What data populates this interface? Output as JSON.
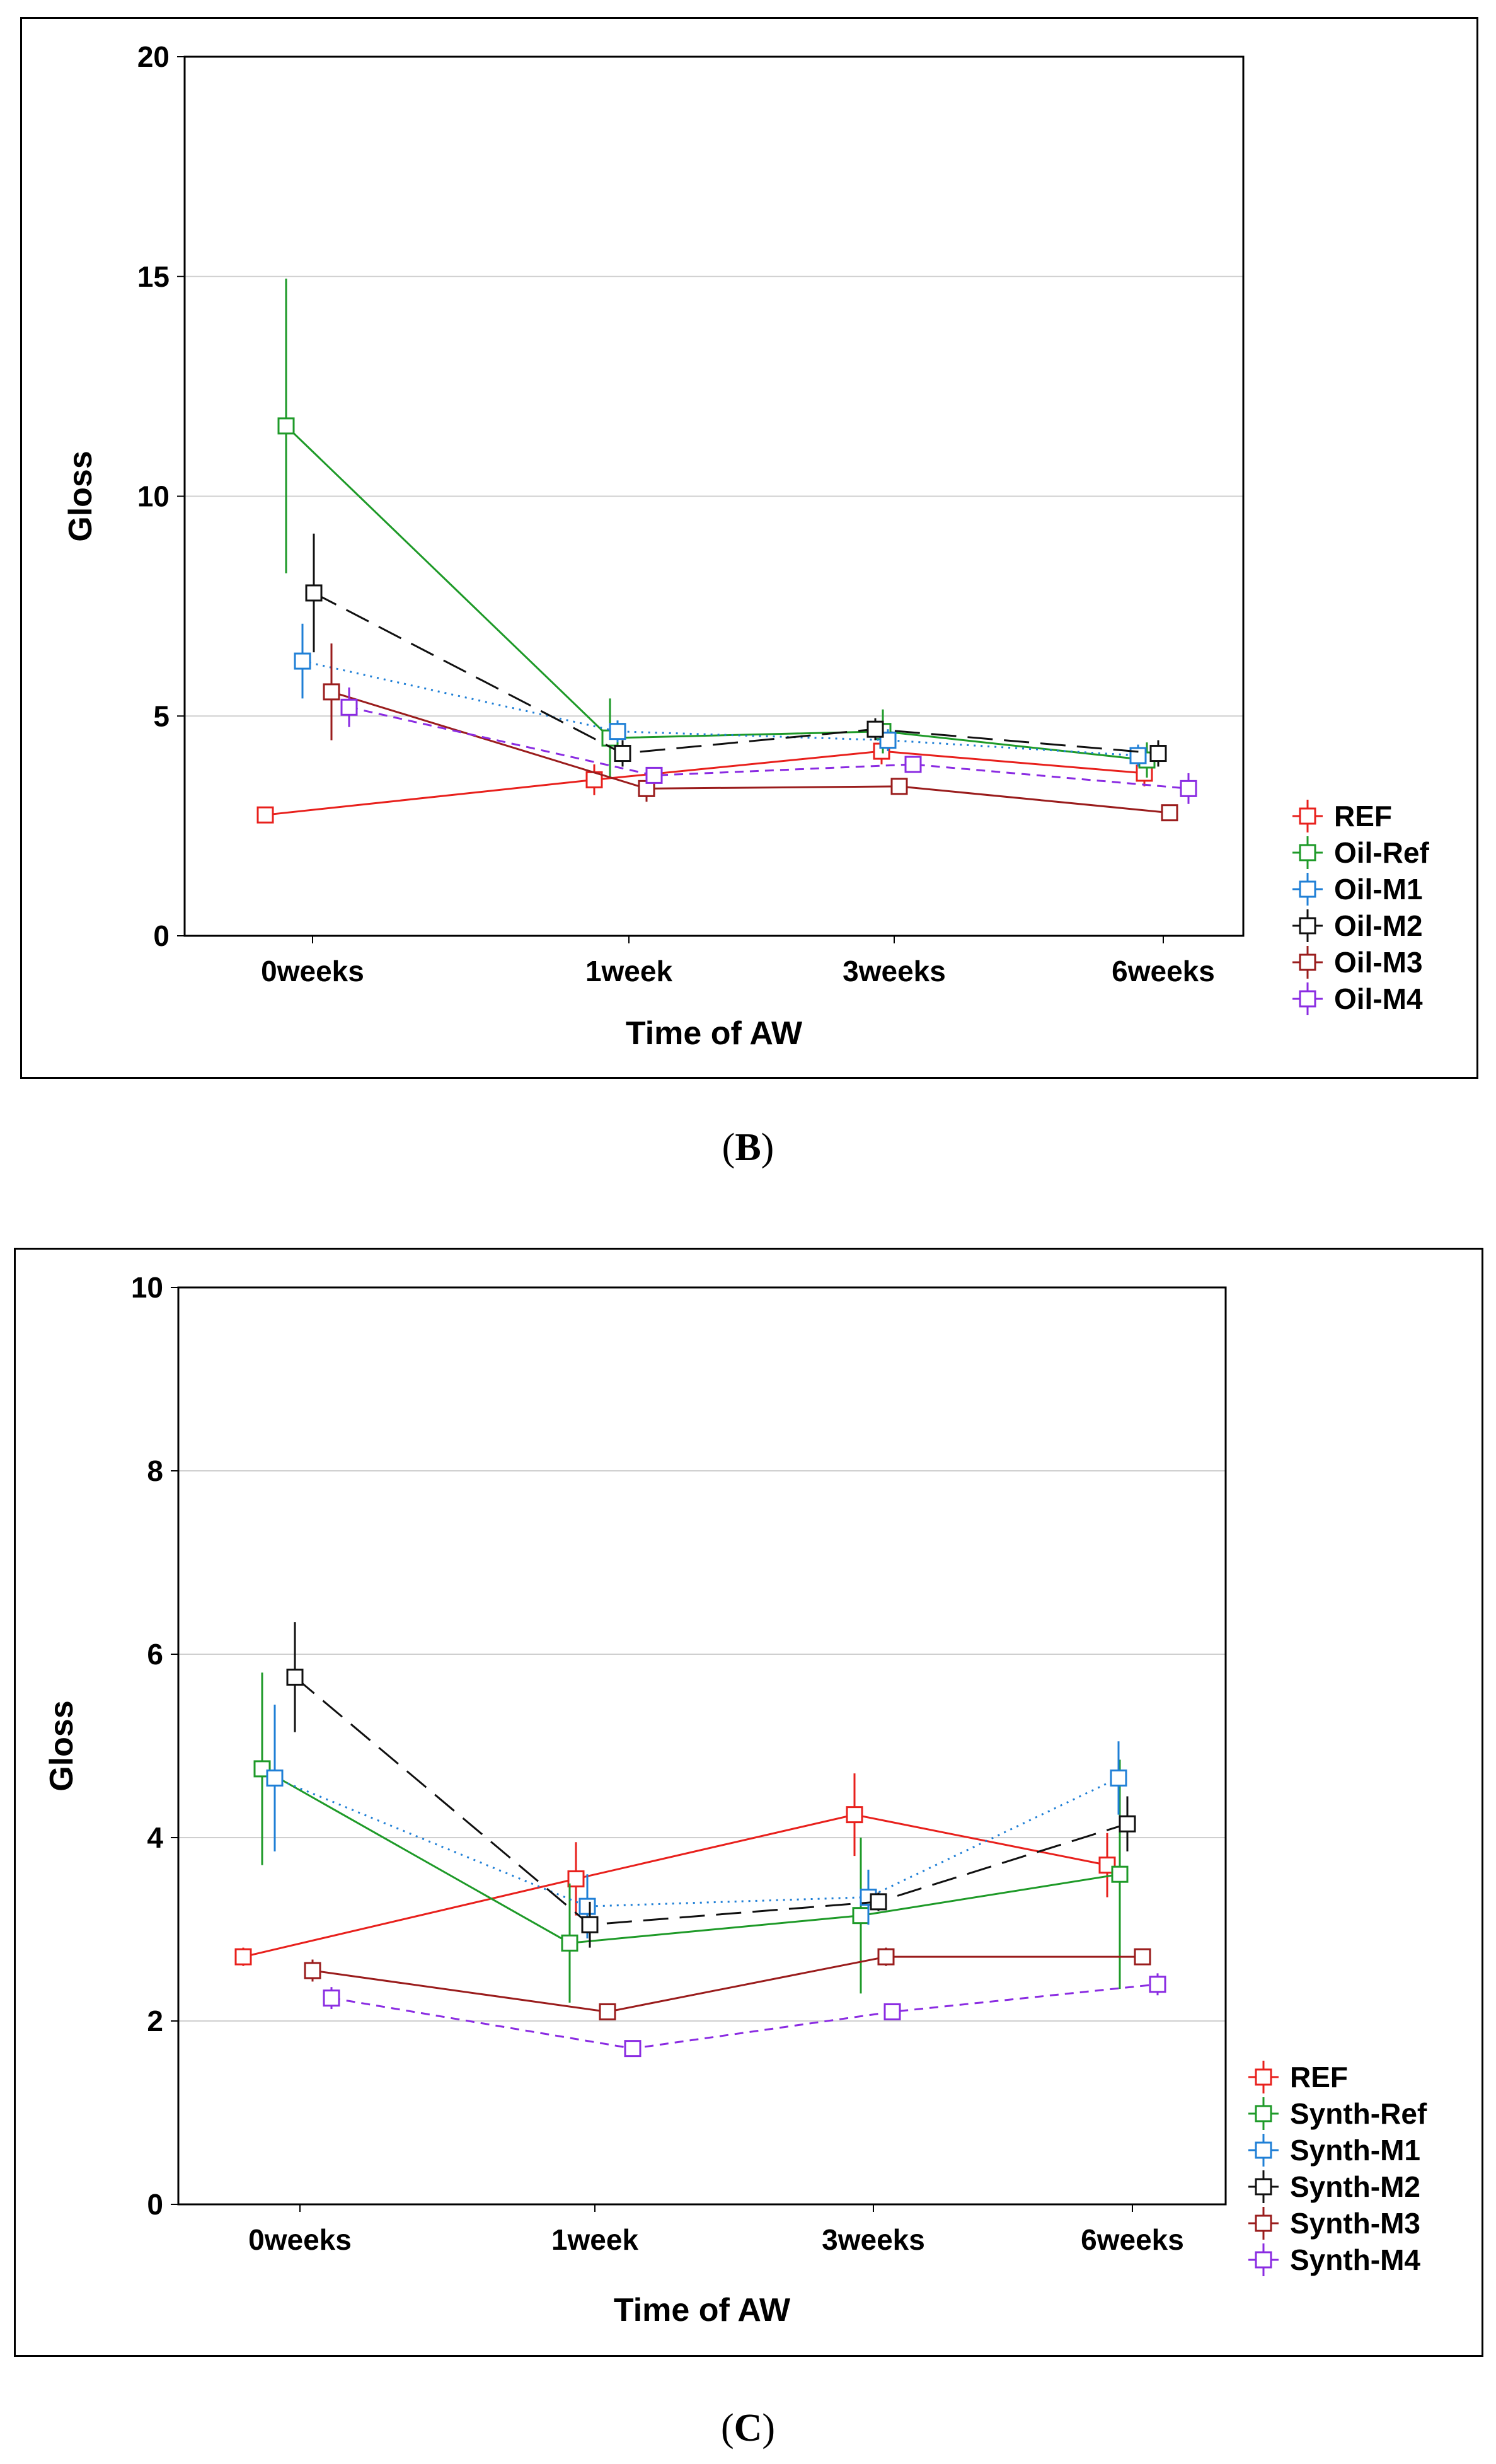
{
  "panels": [
    {
      "caption": {
        "open": "(",
        "letter": "B",
        "close": ")"
      },
      "chart_data": {
        "type": "line",
        "title": "",
        "xlabel": "Time of AW",
        "ylabel": "Gloss",
        "ylim": [
          0,
          20
        ],
        "yticks": [
          0,
          5,
          10,
          15,
          20
        ],
        "grid": true,
        "legend": "right-bottom",
        "categories": [
          "0weeks",
          "1week",
          "3weeks",
          "6weeks"
        ],
        "series": [
          {
            "name": "REF",
            "color": "#e8201c",
            "dash": "solid",
            "values": [
              2.75,
              3.55,
              4.2,
              3.7
            ],
            "err": [
              0.1,
              0.35,
              0.3,
              0.3
            ]
          },
          {
            "name": "Oil-Ref",
            "color": "#1e9a28",
            "dash": "solid",
            "values": [
              11.6,
              4.5,
              4.65,
              4.0
            ],
            "err": [
              3.35,
              0.9,
              0.5,
              0.4
            ]
          },
          {
            "name": "Oil-M1",
            "color": "#1f7fd6",
            "dash": "dot",
            "values": [
              6.25,
              4.65,
              4.45,
              4.1
            ],
            "err": [
              0.85,
              0.25,
              0.25,
              0.25
            ]
          },
          {
            "name": "Oil-M2",
            "color": "#101010",
            "dash": "longdash",
            "values": [
              7.8,
              4.15,
              4.7,
              4.15
            ],
            "err": [
              1.35,
              0.3,
              0.25,
              0.3
            ]
          },
          {
            "name": "Oil-M3",
            "color": "#9a1c1c",
            "dash": "solid",
            "values": [
              5.55,
              3.35,
              3.4,
              2.8
            ],
            "err": [
              1.1,
              0.3,
              0.1,
              0.1
            ]
          },
          {
            "name": "Oil-M4",
            "color": "#8a2be2",
            "dash": "shortdash",
            "values": [
              5.2,
              3.65,
              3.9,
              3.35
            ],
            "err": [
              0.45,
              0.15,
              0.15,
              0.35
            ]
          }
        ]
      }
    },
    {
      "caption": {
        "open": "(",
        "letter": "C",
        "close": ")"
      },
      "chart_data": {
        "type": "line",
        "title": "",
        "xlabel": "Time of AW",
        "ylabel": "Gloss",
        "ylim": [
          0,
          10
        ],
        "yticks": [
          0,
          2,
          4,
          6,
          8,
          10
        ],
        "grid": true,
        "legend": "right-bottom",
        "categories": [
          "0weeks",
          "1week",
          "3weeks",
          "6weeks"
        ],
        "series": [
          {
            "name": "REF",
            "color": "#e8201c",
            "dash": "solid",
            "values": [
              2.7,
              3.55,
              4.25,
              3.7
            ],
            "err": [
              0.1,
              0.4,
              0.45,
              0.35
            ]
          },
          {
            "name": "Synth-Ref",
            "color": "#1e9a28",
            "dash": "solid",
            "values": [
              4.75,
              2.85,
              3.15,
              3.6
            ],
            "err": [
              1.05,
              0.65,
              0.85,
              1.25
            ]
          },
          {
            "name": "Synth-M1",
            "color": "#1f7fd6",
            "dash": "dot",
            "values": [
              4.65,
              3.25,
              3.35,
              4.65
            ],
            "err": [
              0.8,
              0.35,
              0.3,
              0.4
            ]
          },
          {
            "name": "Synth-M2",
            "color": "#101010",
            "dash": "longdash",
            "values": [
              5.75,
              3.05,
              3.3,
              4.15
            ],
            "err": [
              0.6,
              0.25,
              0.1,
              0.3
            ]
          },
          {
            "name": "Synth-M3",
            "color": "#9a1c1c",
            "dash": "solid",
            "values": [
              2.55,
              2.1,
              2.7,
              2.7
            ],
            "err": [
              0.12,
              0.08,
              0.1,
              0.08
            ]
          },
          {
            "name": "Synth-M4",
            "color": "#8a2be2",
            "dash": "shortdash",
            "values": [
              2.25,
              1.7,
              2.1,
              2.4
            ],
            "err": [
              0.12,
              0.05,
              0.07,
              0.12
            ]
          }
        ]
      }
    }
  ]
}
